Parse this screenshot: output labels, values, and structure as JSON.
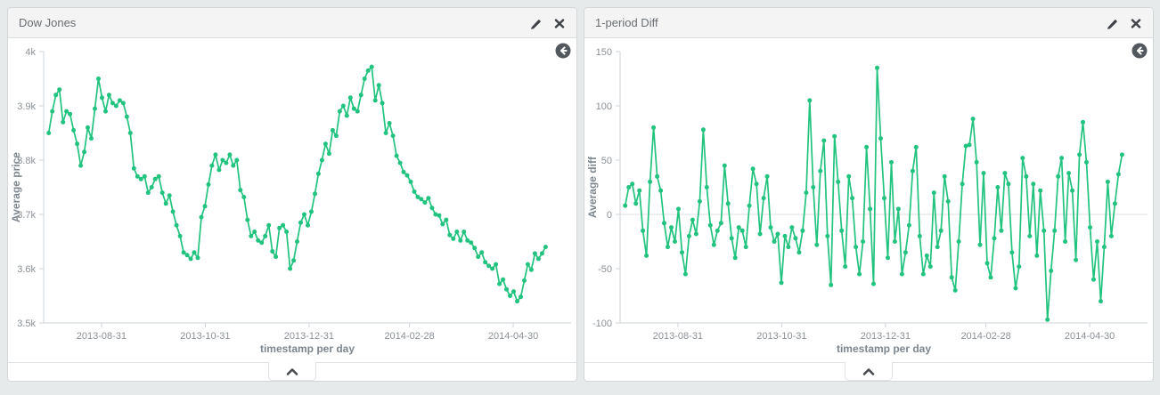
{
  "panels": [
    {
      "title": "Dow Jones",
      "icons": {
        "edit": "pencil-icon",
        "close": "close-icon",
        "reset": "back-circle-icon",
        "collapse": "chevron-up-icon"
      },
      "chart_data": {
        "type": "line",
        "title": "Dow Jones",
        "ylabel": "Average price",
        "xlabel": "timestamp per day",
        "color": "#22c37e",
        "legend_position": "none",
        "grid": false,
        "zero_line": false,
        "ylim": [
          3500,
          4000
        ],
        "y_ticks": [
          {
            "v": 4000,
            "label": "4k"
          },
          {
            "v": 3900,
            "label": "3.9k"
          },
          {
            "v": 3800,
            "label": "3.8k"
          },
          {
            "v": 3700,
            "label": "3.7k"
          },
          {
            "v": 3600,
            "label": "3.6k"
          },
          {
            "v": 3500,
            "label": "3.5k"
          }
        ],
        "x_domain": [
          "2013-07-28",
          "2014-06-03"
        ],
        "x_ticks": [
          "2013-08-31",
          "2013-10-31",
          "2013-12-31",
          "2014-02-28",
          "2014-04-30"
        ],
        "points_start": "2013-07-31",
        "points_end": "2014-05-19",
        "values": [
          3850,
          3890,
          3920,
          3930,
          3870,
          3890,
          3885,
          3855,
          3830,
          3790,
          3815,
          3860,
          3840,
          3895,
          3950,
          3915,
          3890,
          3920,
          3905,
          3900,
          3910,
          3905,
          3880,
          3850,
          3785,
          3770,
          3765,
          3770,
          3740,
          3750,
          3765,
          3770,
          3740,
          3720,
          3735,
          3705,
          3680,
          3660,
          3630,
          3625,
          3618,
          3630,
          3620,
          3695,
          3715,
          3755,
          3790,
          3810,
          3782,
          3800,
          3795,
          3810,
          3790,
          3800,
          3745,
          3732,
          3690,
          3660,
          3668,
          3652,
          3648,
          3660,
          3680,
          3632,
          3622,
          3675,
          3680,
          3668,
          3600,
          3615,
          3650,
          3685,
          3700,
          3680,
          3705,
          3738,
          3775,
          3800,
          3830,
          3812,
          3855,
          3845,
          3890,
          3900,
          3882,
          3915,
          3895,
          3890,
          3920,
          3950,
          3965,
          3972,
          3910,
          3938,
          3905,
          3850,
          3868,
          3845,
          3808,
          3795,
          3778,
          3772,
          3760,
          3742,
          3732,
          3728,
          3722,
          3730,
          3712,
          3700,
          3698,
          3682,
          3690,
          3662,
          3655,
          3668,
          3652,
          3668,
          3652,
          3648,
          3638,
          3622,
          3630,
          3612,
          3605,
          3600,
          3608,
          3572,
          3580,
          3562,
          3550,
          3558,
          3540,
          3548,
          3578,
          3608,
          3598,
          3628,
          3618,
          3628,
          3640
        ]
      }
    },
    {
      "title": "1-period Diff",
      "icons": {
        "edit": "pencil-icon",
        "close": "close-icon",
        "reset": "back-circle-icon",
        "collapse": "chevron-up-icon"
      },
      "chart_data": {
        "type": "line",
        "title": "1-period Diff",
        "ylabel": "Average diff",
        "xlabel": "timestamp per day",
        "color": "#22c37e",
        "legend_position": "none",
        "grid": false,
        "zero_line": true,
        "ylim": [
          -100,
          150
        ],
        "y_ticks": [
          {
            "v": 150,
            "label": "150"
          },
          {
            "v": 100,
            "label": "100"
          },
          {
            "v": 50,
            "label": "50"
          },
          {
            "v": 0,
            "label": "0"
          },
          {
            "v": -50,
            "label": "-50"
          },
          {
            "v": -100,
            "label": "-100"
          }
        ],
        "x_domain": [
          "2013-07-28",
          "2014-06-03"
        ],
        "x_ticks": [
          "2013-08-31",
          "2013-10-31",
          "2013-12-31",
          "2014-02-28",
          "2014-04-30"
        ],
        "points_start": "2013-07-31",
        "points_end": "2014-05-19",
        "values": [
          8,
          25,
          28,
          10,
          22,
          -15,
          -38,
          30,
          80,
          35,
          22,
          -8,
          -30,
          -12,
          -25,
          5,
          -35,
          -55,
          -20,
          -5,
          -18,
          12,
          78,
          25,
          -10,
          -28,
          -15,
          -8,
          45,
          10,
          -22,
          -40,
          -12,
          -15,
          -30,
          8,
          42,
          28,
          -18,
          15,
          35,
          -12,
          -25,
          -18,
          -63,
          -20,
          -30,
          -12,
          -22,
          -35,
          -15,
          20,
          105,
          25,
          -28,
          40,
          68,
          -20,
          -65,
          72,
          30,
          -15,
          -48,
          35,
          15,
          -30,
          -55,
          -25,
          62,
          5,
          -64,
          135,
          70,
          15,
          -40,
          48,
          -25,
          5,
          -55,
          -35,
          -10,
          40,
          62,
          -20,
          -55,
          -38,
          -48,
          20,
          -30,
          -15,
          35,
          12,
          -58,
          -70,
          -25,
          28,
          63,
          64,
          88,
          48,
          -28,
          38,
          -45,
          -58,
          -22,
          25,
          -15,
          38,
          28,
          -35,
          -68,
          -48,
          52,
          35,
          -20,
          28,
          -38,
          22,
          -15,
          -97,
          -52,
          -15,
          35,
          52,
          -25,
          38,
          22,
          -42,
          55,
          85,
          48,
          -12,
          -60,
          -25,
          -80,
          -30,
          30,
          -20,
          10,
          37,
          55
        ]
      }
    }
  ]
}
